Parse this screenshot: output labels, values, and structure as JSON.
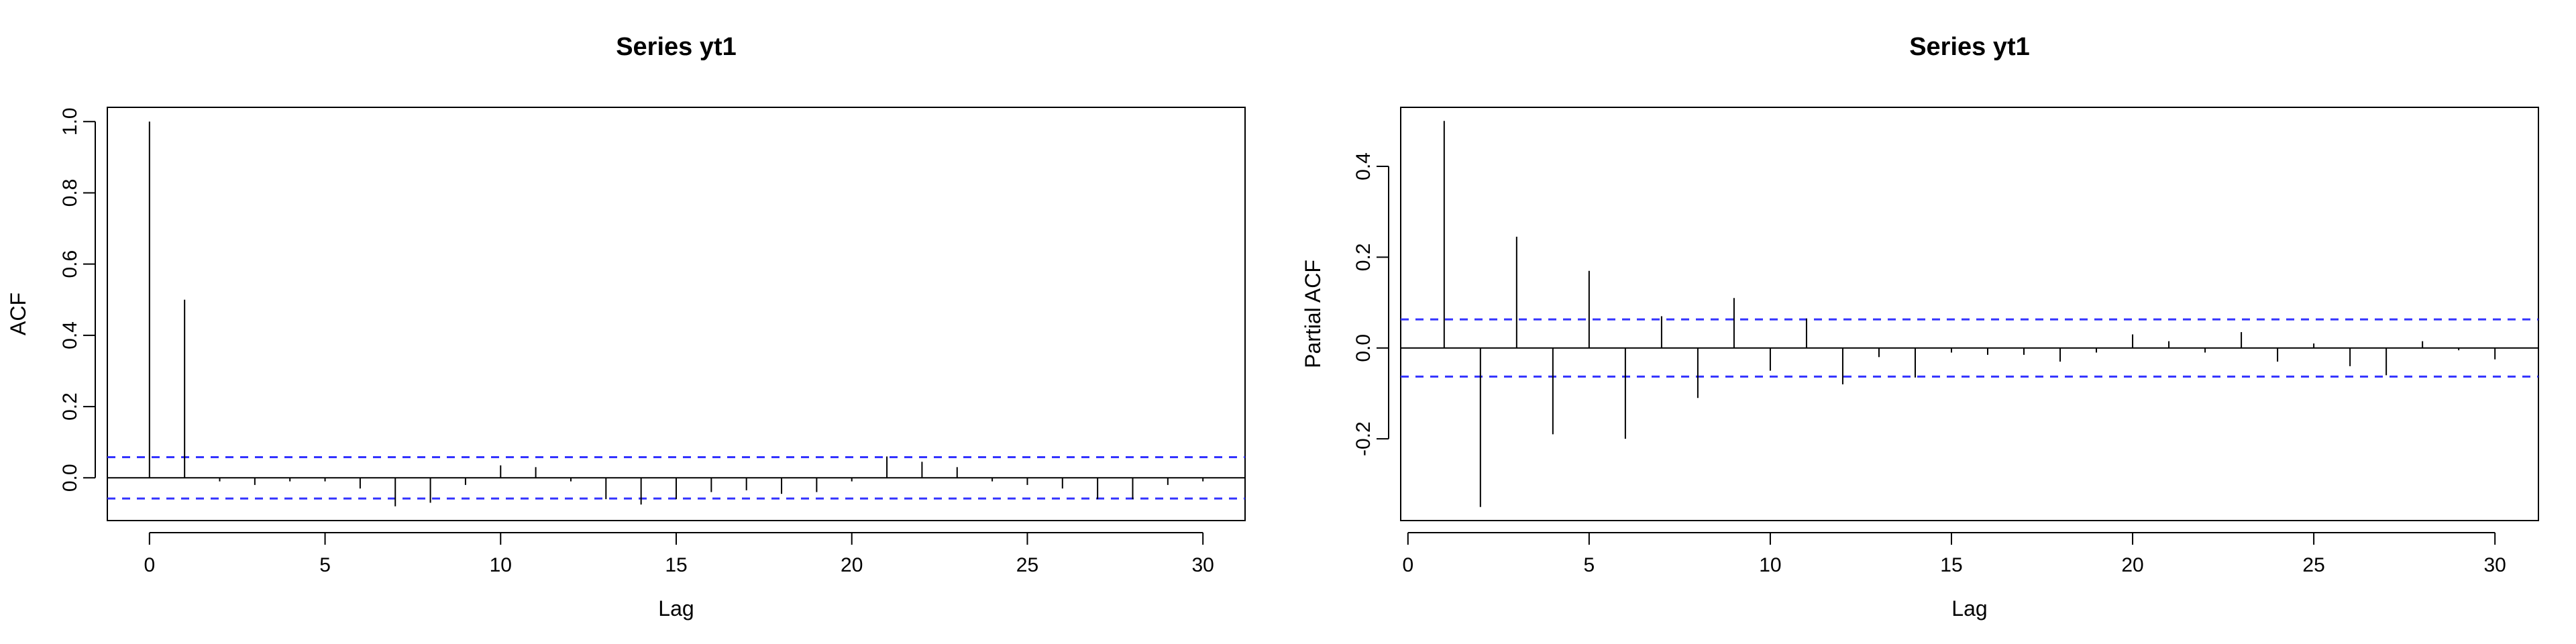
{
  "chart_data": [
    {
      "type": "bar",
      "title": "Series  yt1",
      "xlabel": "Lag",
      "ylabel": "ACF",
      "xlim": [
        -1.2,
        31.2
      ],
      "ylim": [
        -0.12,
        1.04
      ],
      "xticks": [
        0,
        5,
        10,
        15,
        20,
        25,
        30
      ],
      "xtick_labels": [
        "0",
        "5",
        "10",
        "15",
        "20",
        "25",
        "30"
      ],
      "yticks": [
        0.0,
        0.2,
        0.4,
        0.6,
        0.8,
        1.0
      ],
      "ytick_labels": [
        "0.0",
        "0.2",
        "0.4",
        "0.6",
        "0.8",
        "1.0"
      ],
      "confidence_band": 0.058,
      "lags": [
        0,
        1,
        2,
        3,
        4,
        5,
        6,
        7,
        8,
        9,
        10,
        11,
        12,
        13,
        14,
        15,
        16,
        17,
        18,
        19,
        20,
        21,
        22,
        23,
        24,
        25,
        26,
        27,
        28,
        29,
        30
      ],
      "values": [
        1.0,
        0.5,
        -0.01,
        -0.02,
        -0.01,
        -0.01,
        -0.03,
        -0.08,
        -0.07,
        -0.02,
        0.035,
        0.03,
        -0.01,
        -0.06,
        -0.075,
        -0.06,
        -0.04,
        -0.035,
        -0.045,
        -0.04,
        -0.01,
        0.06,
        0.045,
        0.03,
        -0.01,
        -0.02,
        -0.03,
        -0.06,
        -0.06,
        -0.02,
        -0.01
      ],
      "grid": false,
      "legend": "none",
      "line_color": "#000000",
      "band_color": "#3333ff"
    },
    {
      "type": "bar",
      "title": "Series  yt1",
      "xlabel": "Lag",
      "ylabel": "Partial ACF",
      "xlim": [
        -0.2,
        31.2
      ],
      "ylim": [
        -0.38,
        0.53
      ],
      "xticks": [
        0,
        5,
        10,
        15,
        20,
        25,
        30
      ],
      "xtick_labels": [
        "0",
        "5",
        "10",
        "15",
        "20",
        "25",
        "30"
      ],
      "yticks": [
        -0.2,
        0.0,
        0.2,
        0.4
      ],
      "ytick_labels": [
        "-0.2",
        "0.0",
        "0.2",
        "0.4"
      ],
      "confidence_band": 0.063,
      "lags": [
        1,
        2,
        3,
        4,
        5,
        6,
        7,
        8,
        9,
        10,
        11,
        12,
        13,
        14,
        15,
        16,
        17,
        18,
        19,
        20,
        21,
        22,
        23,
        24,
        25,
        26,
        27,
        28,
        29,
        30
      ],
      "values": [
        0.5,
        -0.35,
        0.245,
        -0.19,
        0.17,
        -0.2,
        0.07,
        -0.11,
        0.11,
        -0.05,
        0.065,
        -0.08,
        -0.02,
        -0.065,
        -0.01,
        -0.015,
        -0.015,
        -0.03,
        -0.01,
        0.03,
        0.015,
        -0.01,
        0.035,
        -0.03,
        0.01,
        -0.04,
        -0.06,
        0.015,
        -0.005,
        -0.025
      ],
      "grid": false,
      "legend": "none",
      "line_color": "#000000",
      "band_color": "#3333ff"
    }
  ]
}
